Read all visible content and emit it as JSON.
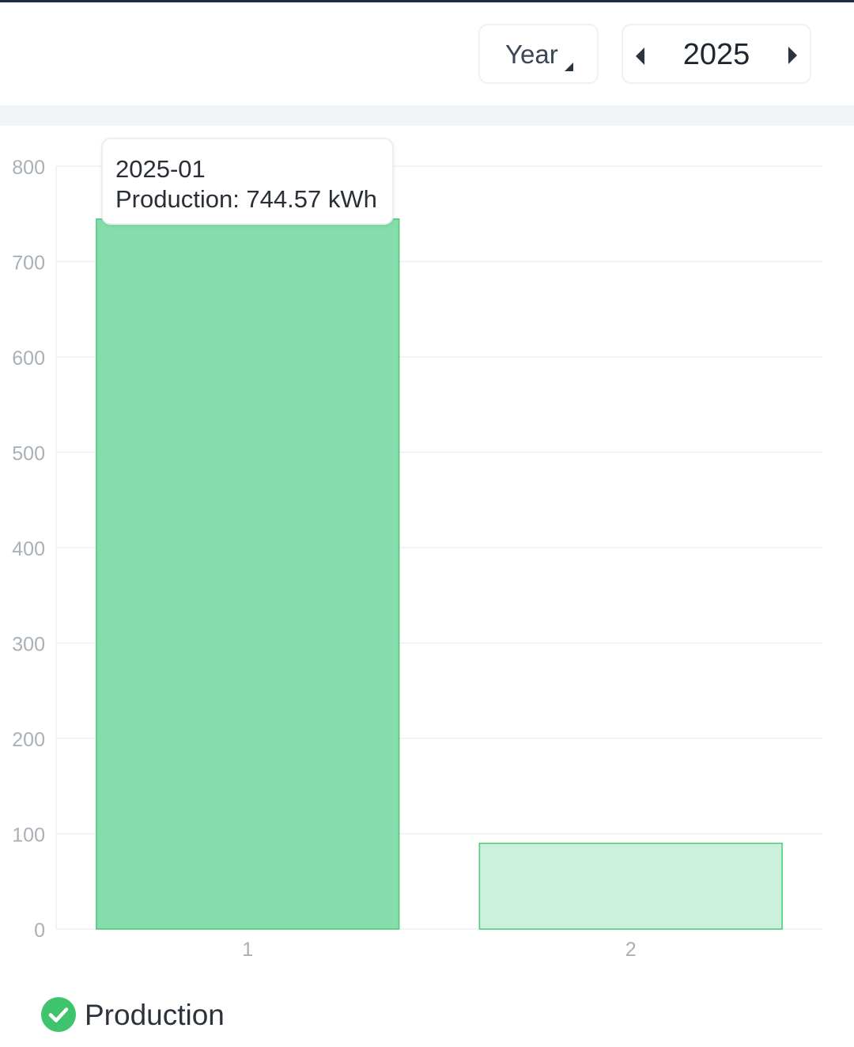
{
  "toolbar": {
    "period_select": {
      "label": "Year",
      "icon": "caret-down-icon"
    },
    "year_picker": {
      "value": "2025",
      "prev_icon": "chevron-left-icon",
      "next_icon": "chevron-right-icon"
    }
  },
  "tooltip": {
    "title": "2025-01",
    "text": "Production: 744.57 kWh"
  },
  "legend": {
    "label": "Production",
    "icon": "check-circle-icon",
    "color": "#3fc46d"
  },
  "colors": {
    "bar_active": "#84ddaa",
    "bar_inactive": "#cbf0db",
    "bar_stroke": "#4fc77b",
    "grid": "#eef0f2",
    "tick_text": "#a9b0b8"
  },
  "chart_data": {
    "type": "bar",
    "categories": [
      "1",
      "2"
    ],
    "series": [
      {
        "name": "Production",
        "values": [
          744.57,
          90
        ]
      }
    ],
    "ylim": [
      0,
      800
    ],
    "yticks": [
      0,
      100,
      200,
      300,
      400,
      500,
      600,
      700,
      800
    ],
    "active_index": 0,
    "grid": true,
    "legend_position": "bottom-left"
  }
}
